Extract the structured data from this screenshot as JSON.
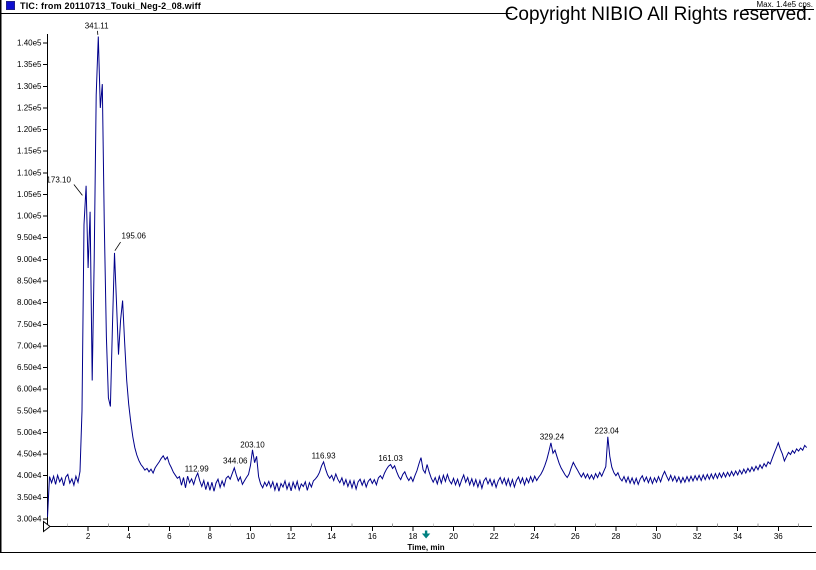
{
  "window": {
    "title": "TIC: from 20110713_Touki_Neg-2_08.wiff",
    "max_label": "Max. 1.4e5 cps.",
    "icon_color": "#0d0dd0"
  },
  "copyright": "Copyright NIBIO All Rights reserved.",
  "chart_data": {
    "type": "line",
    "title": "TIC: from 20110713_Touki_Neg-2_08.wiff",
    "subtitle": "Max. 1.4e5 cps.",
    "xlabel": "Time, min",
    "ylabel": "",
    "xlim": [
      0,
      37.6
    ],
    "ylim": [
      30000,
      140000
    ],
    "grid": false,
    "legend": "none",
    "line_color": "#00008b",
    "x_ticks": [
      2,
      4,
      6,
      8,
      10,
      12,
      14,
      16,
      18,
      20,
      22,
      24,
      26,
      28,
      30,
      32,
      34,
      36
    ],
    "y_tick_values": [
      140000,
      135000,
      130000,
      125000,
      120000,
      115000,
      110000,
      105000,
      100000,
      95000,
      90000,
      85000,
      80000,
      75000,
      70000,
      65000,
      60000,
      55000,
      50000,
      45000,
      40000,
      35000,
      30000
    ],
    "y_tick_labels": [
      "1.40e5",
      "1.35e5",
      "1.30e5",
      "1.25e5",
      "1.20e5",
      "1.15e5",
      "1.10e5",
      "1.05e5",
      "1.00e5",
      "9.50e4",
      "9.00e4",
      "8.50e4",
      "8.00e4",
      "7.50e4",
      "7.00e4",
      "6.50e4",
      "6.00e4",
      "5.50e4",
      "5.00e4",
      "4.50e4",
      "4.00e4",
      "3.50e4",
      "3.00e4"
    ],
    "peak_labels": [
      {
        "text": "173.10",
        "t": 0.55,
        "i": 107800,
        "leader": [
          [
            1.3,
            107300
          ],
          [
            1.72,
            104800
          ]
        ]
      },
      {
        "text": "341.11",
        "t": 2.42,
        "i": 143400,
        "leader": [
          [
            2.46,
            142800
          ],
          [
            2.48,
            141900
          ]
        ]
      },
      {
        "text": "195.06",
        "t": 4.25,
        "i": 94800,
        "leader": [
          [
            3.6,
            94000
          ],
          [
            3.32,
            92000
          ]
        ]
      },
      {
        "text": "112.99",
        "t": 7.35,
        "i": 41000
      },
      {
        "text": "344.06",
        "t": 9.25,
        "i": 42800
      },
      {
        "text": "203.10",
        "t": 10.1,
        "i": 46500
      },
      {
        "text": "116.93",
        "t": 13.6,
        "i": 44000
      },
      {
        "text": "161.03",
        "t": 16.9,
        "i": 43400
      },
      {
        "text": "329.24",
        "t": 24.85,
        "i": 48400
      },
      {
        "text": "223.04",
        "t": 27.55,
        "i": 49800
      }
    ],
    "time_marker": {
      "t": 18.65,
      "color": "#008080"
    },
    "trace": {
      "t0": 0.0,
      "dt": 0.1,
      "unit": "cps",
      "intensities": [
        30500,
        39800,
        38400,
        39900,
        38000,
        40100,
        38600,
        39500,
        37700,
        39700,
        40300,
        38300,
        39300,
        37800,
        39900,
        38500,
        41000,
        55000,
        98000,
        107000,
        88000,
        101000,
        62000,
        90000,
        128000,
        141500,
        125000,
        130500,
        98000,
        72000,
        58000,
        56000,
        75000,
        91500,
        80000,
        68000,
        76000,
        80500,
        71000,
        62000,
        56500,
        52500,
        49000,
        46500,
        44800,
        43500,
        42600,
        42000,
        41300,
        41700,
        40900,
        41500,
        40600,
        41800,
        42500,
        43200,
        44000,
        44600,
        43700,
        44300,
        42800,
        41900,
        40800,
        40100,
        39400,
        39800,
        37800,
        39600,
        37200,
        39900,
        38400,
        39300,
        38000,
        39600,
        40600,
        38800,
        37500,
        38900,
        36800,
        38600,
        36600,
        38500,
        36400,
        38300,
        39200,
        37300,
        38800,
        37600,
        39400,
        39900,
        39200,
        40500,
        41800,
        40200,
        38800,
        39700,
        38000,
        38800,
        39600,
        40300,
        42400,
        46000,
        43000,
        44500,
        39800,
        38100,
        37200,
        38500,
        37600,
        38700,
        37300,
        38600,
        36700,
        38400,
        36400,
        38200,
        37400,
        38800,
        36900,
        38300,
        36500,
        38500,
        37100,
        38700,
        36700,
        38100,
        37500,
        38600,
        36600,
        38400,
        37400,
        38800,
        39300,
        39900,
        40800,
        42300,
        43200,
        41500,
        40200,
        39400,
        40100,
        38900,
        40400,
        39200,
        38400,
        39500,
        37900,
        39100,
        37500,
        38900,
        37200,
        38800,
        36900,
        38600,
        39200,
        37800,
        39000,
        37400,
        38700,
        39300,
        38200,
        39100,
        37900,
        39500,
        40000,
        39300,
        40600,
        41500,
        42200,
        42600,
        41700,
        42300,
        40900,
        39800,
        39100,
        40300,
        40900,
        39700,
        38900,
        39700,
        38700,
        40000,
        41200,
        42800,
        44200,
        41400,
        40600,
        42600,
        40900,
        39500,
        38500,
        39600,
        38100,
        39900,
        38300,
        40100,
        38700,
        40300,
        38900,
        38100,
        39400,
        37900,
        39200,
        37600,
        39000,
        40200,
        38500,
        39600,
        37900,
        39300,
        37700,
        39100,
        37400,
        38900,
        37100,
        38800,
        39500,
        38100,
        39200,
        37700,
        39000,
        37300,
        38800,
        39600,
        38200,
        39400,
        37800,
        39300,
        37600,
        39100,
        37400,
        38900,
        39700,
        38300,
        39500,
        37900,
        39400,
        38400,
        39800,
        38600,
        39900,
        38900,
        39700,
        40300,
        41200,
        42400,
        43800,
        45600,
        47600,
        45200,
        45900,
        44400,
        42900,
        41800,
        41000,
        40200,
        39600,
        40400,
        41800,
        43100,
        42200,
        41400,
        40500,
        39700,
        40600,
        39500,
        40400,
        39300,
        40200,
        39200,
        40500,
        39600,
        40800,
        39900,
        41000,
        42100,
        49000,
        44500,
        42000,
        40700,
        40000,
        40700,
        39400,
        38800,
        39800,
        38500,
        39700,
        38300,
        39500,
        38100,
        39400,
        38000,
        39300,
        40000,
        38700,
        39700,
        38400,
        39600,
        38200,
        39500,
        38500,
        39800,
        38600,
        40000,
        41000,
        39900,
        38900,
        40100,
        38800,
        39900,
        38600,
        39700,
        38400,
        39600,
        38500,
        39800,
        38700,
        39900,
        38800,
        40000,
        39000,
        40100,
        38900,
        40200,
        39100,
        40300,
        39200,
        40400,
        39300,
        40500,
        39400,
        40600,
        39600,
        40700,
        39700,
        40800,
        39900,
        41000,
        40000,
        41100,
        40200,
        41300,
        40400,
        41500,
        40600,
        41700,
        40900,
        42000,
        41100,
        42200,
        41400,
        42500,
        41700,
        42800,
        42100,
        43200,
        42700,
        44000,
        45200,
        46400,
        47600,
        46200,
        45000,
        43400,
        44400,
        45400,
        44900,
        45800,
        45200,
        46200,
        45700,
        46400,
        45900,
        47000,
        46500
      ]
    }
  }
}
